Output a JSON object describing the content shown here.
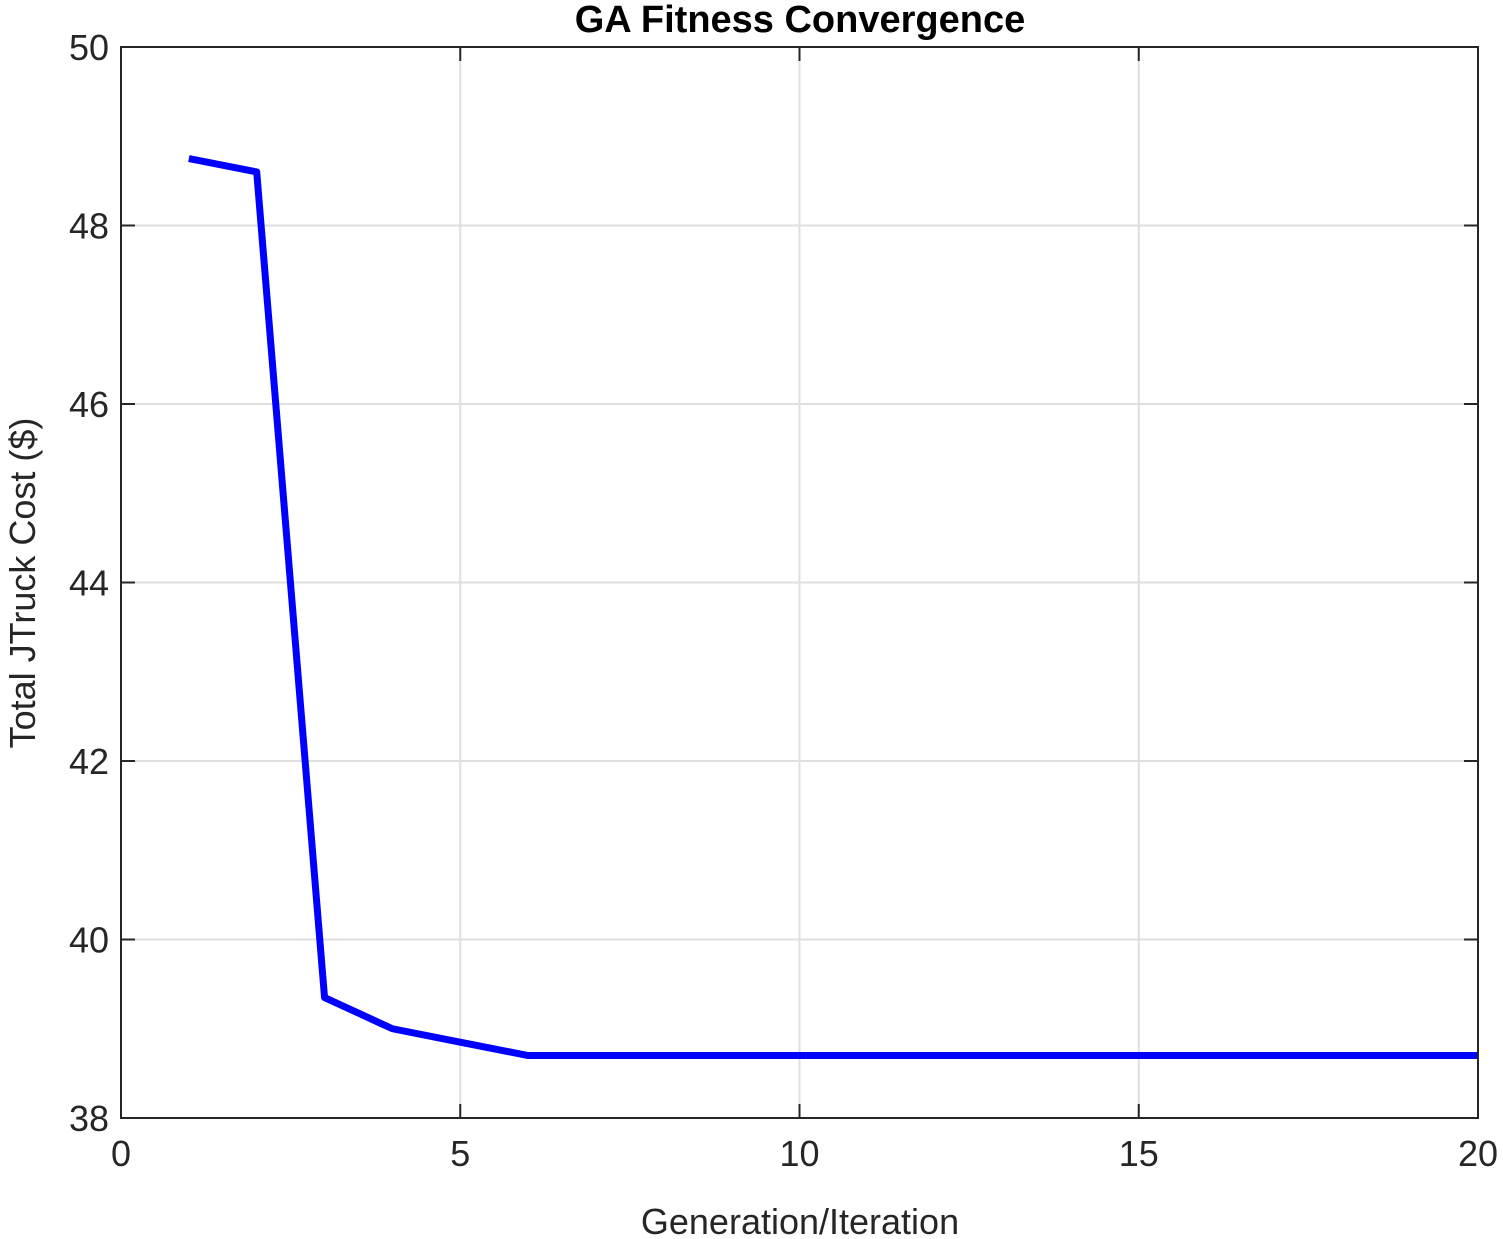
{
  "chart_data": {
    "type": "line",
    "title": "GA Fitness Convergence",
    "xlabel": "Generation/Iteration",
    "ylabel": "Total JTruck Cost ($)",
    "xlim": [
      0,
      20
    ],
    "ylim": [
      38,
      50
    ],
    "xticks": [
      0,
      5,
      10,
      15,
      20
    ],
    "yticks": [
      38,
      40,
      42,
      44,
      46,
      48,
      50
    ],
    "grid": true,
    "series": [
      {
        "color": "#0000ff",
        "x": [
          1,
          2,
          3,
          4,
          5,
          6,
          7,
          8,
          9,
          10,
          11,
          12,
          13,
          14,
          15,
          16,
          17,
          18,
          19,
          20
        ],
        "y": [
          48.75,
          48.6,
          39.35,
          39.0,
          38.85,
          38.7,
          38.7,
          38.7,
          38.7,
          38.7,
          38.7,
          38.7,
          38.7,
          38.7,
          38.7,
          38.7,
          38.7,
          38.7,
          38.7,
          38.7
        ]
      }
    ]
  }
}
